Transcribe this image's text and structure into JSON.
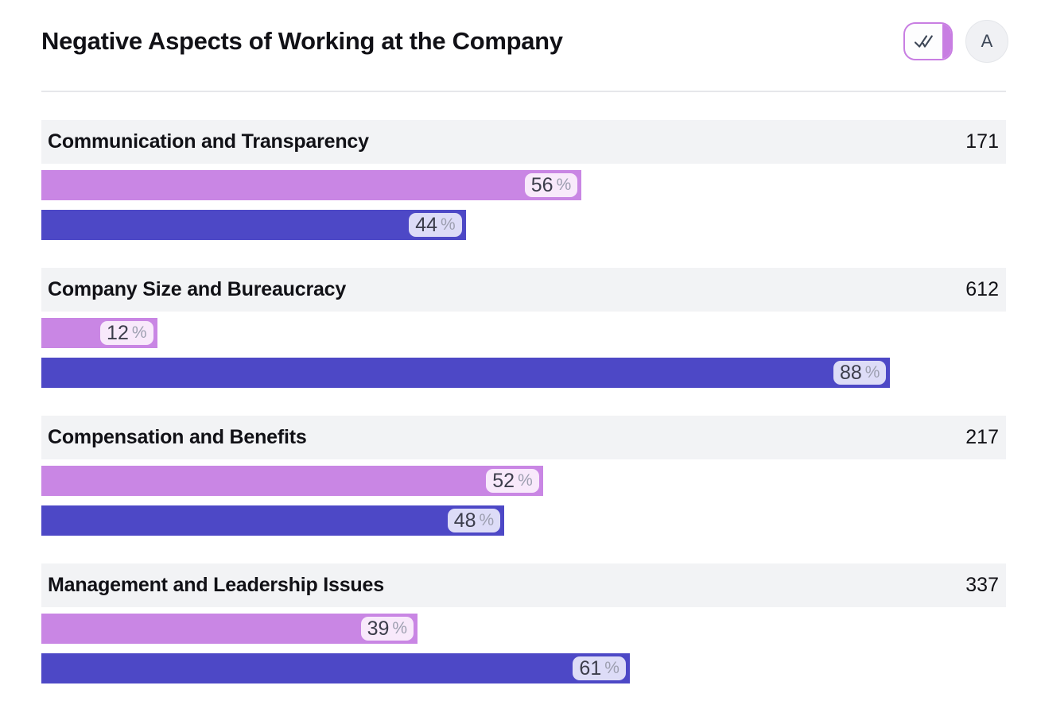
{
  "page": {
    "title": "Negative Aspects of Working at the Company"
  },
  "toolbar": {
    "check_button": {
      "icon": "double-check-icon"
    },
    "annotation_button": {
      "label": "A"
    }
  },
  "colors": {
    "pink_bar": "#c986e4",
    "blue_bar": "#4d48c6",
    "pink_badge_bg": "#f8e9fb",
    "blue_badge_bg": "#dddcf7",
    "badge_number": "#3c3d4b",
    "badge_percent": "#9d9fb0",
    "row_header_bg": "#f2f3f5",
    "title_text": "#111116",
    "divider": "#e6e7ea",
    "button_purple": "#c87ee2",
    "icon_dark": "#3d4757",
    "circle_button_bg": "#f0f1f4",
    "circle_button_border": "#e4e6ea"
  },
  "chart_data": {
    "type": "bar",
    "orientation": "horizontal",
    "title": "Negative Aspects of Working at the Company",
    "unit": "%",
    "percent_sign": "%",
    "xlim": [
      0,
      100
    ],
    "grid": false,
    "legend": false,
    "categories": [
      "Communication and Transparency",
      "Company Size and Bureaucracy",
      "Compensation and Benefits",
      "Management and Leadership Issues"
    ],
    "counts": [
      "171",
      "612",
      "217",
      "337"
    ],
    "series": [
      {
        "name": "pink",
        "values": [
          56,
          12,
          52,
          39
        ]
      },
      {
        "name": "blue",
        "values": [
          44,
          88,
          48,
          61
        ]
      }
    ]
  }
}
